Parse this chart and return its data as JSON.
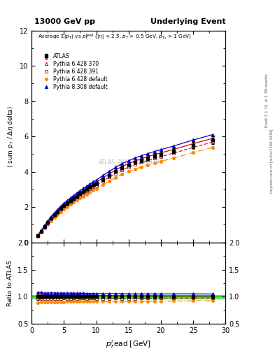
{
  "title_left": "13000 GeV pp",
  "title_right": "Underlying Event",
  "xlabel": "p$_T^l$ead [GeV]",
  "ylabel_main": "$\\langle$ sum $p_T$ / $\\Delta\\eta$ delta$\\rangle$",
  "ylabel_ratio": "Ratio to ATLAS",
  "right_label_top": "Rivet 3.1.10, ≥ 2.7M events",
  "right_label_bot": "mcplots.cern.ch [arXiv:1306.3436]",
  "watermark": "ATLAS_2017_I1509919",
  "xlim": [
    0,
    30
  ],
  "ylim_main": [
    0,
    12
  ],
  "ylim_ratio": [
    0.5,
    2.0
  ],
  "yticks_main": [
    0,
    2,
    4,
    6,
    8,
    10,
    12
  ],
  "yticks_ratio": [
    0.5,
    1.0,
    1.5,
    2.0
  ],
  "data_x": [
    1.0,
    1.5,
    2.0,
    2.5,
    3.0,
    3.5,
    4.0,
    4.5,
    5.0,
    5.5,
    6.0,
    6.5,
    7.0,
    7.5,
    8.0,
    8.5,
    9.0,
    9.5,
    10.0,
    11.0,
    12.0,
    13.0,
    14.0,
    15.0,
    16.0,
    17.0,
    18.0,
    19.0,
    20.0,
    22.0,
    25.0,
    28.0
  ],
  "atlas_y": [
    0.38,
    0.63,
    0.9,
    1.14,
    1.36,
    1.56,
    1.74,
    1.92,
    2.08,
    2.22,
    2.36,
    2.49,
    2.62,
    2.75,
    2.87,
    2.99,
    3.11,
    3.22,
    3.33,
    3.57,
    3.8,
    4.01,
    4.22,
    4.38,
    4.53,
    4.65,
    4.77,
    4.88,
    4.98,
    5.18,
    5.5,
    5.8
  ],
  "atlas_yerr": [
    0.02,
    0.02,
    0.02,
    0.02,
    0.02,
    0.02,
    0.02,
    0.02,
    0.02,
    0.02,
    0.02,
    0.02,
    0.02,
    0.02,
    0.02,
    0.02,
    0.02,
    0.02,
    0.02,
    0.03,
    0.04,
    0.05,
    0.06,
    0.07,
    0.08,
    0.09,
    0.1,
    0.11,
    0.12,
    0.14,
    0.18,
    0.22
  ],
  "py6_370_y": [
    0.4,
    0.66,
    0.93,
    1.18,
    1.41,
    1.61,
    1.8,
    1.98,
    2.15,
    2.29,
    2.43,
    2.57,
    2.7,
    2.83,
    2.95,
    3.07,
    3.19,
    3.3,
    3.41,
    3.65,
    3.88,
    4.1,
    4.3,
    4.46,
    4.61,
    4.74,
    4.86,
    4.97,
    5.07,
    5.27,
    5.59,
    5.89
  ],
  "py6_391_y": [
    0.37,
    0.61,
    0.87,
    1.1,
    1.32,
    1.51,
    1.69,
    1.87,
    2.03,
    2.16,
    2.29,
    2.43,
    2.55,
    2.68,
    2.8,
    2.91,
    3.03,
    3.14,
    3.24,
    3.47,
    3.7,
    3.91,
    4.11,
    4.26,
    4.41,
    4.53,
    4.65,
    4.76,
    4.86,
    5.06,
    5.38,
    5.68
  ],
  "py6_def_y": [
    0.34,
    0.57,
    0.81,
    1.03,
    1.23,
    1.41,
    1.58,
    1.74,
    1.89,
    2.02,
    2.15,
    2.27,
    2.39,
    2.51,
    2.62,
    2.73,
    2.84,
    2.94,
    3.04,
    3.26,
    3.47,
    3.67,
    3.86,
    4.01,
    4.15,
    4.27,
    4.38,
    4.49,
    4.59,
    4.78,
    5.09,
    5.38
  ],
  "py8_def_y": [
    0.41,
    0.68,
    0.96,
    1.22,
    1.46,
    1.67,
    1.86,
    2.05,
    2.22,
    2.37,
    2.52,
    2.66,
    2.79,
    2.93,
    3.06,
    3.18,
    3.3,
    3.42,
    3.53,
    3.78,
    4.02,
    4.25,
    4.46,
    4.62,
    4.78,
    4.91,
    5.03,
    5.15,
    5.25,
    5.46,
    5.8,
    6.1
  ],
  "color_atlas": "#000000",
  "color_py6_370": "#cc0000",
  "color_py6_391": "#993333",
  "color_py6_def": "#ff8800",
  "color_py8_def": "#0000cc",
  "color_ratio_band": "#00cc00",
  "background_color": "#ffffff",
  "legend_entries": [
    "ATLAS",
    "Pythia 6.428 370",
    "Pythia 6.428 391",
    "Pythia 6.428 default",
    "Pythia 8.308 default"
  ]
}
